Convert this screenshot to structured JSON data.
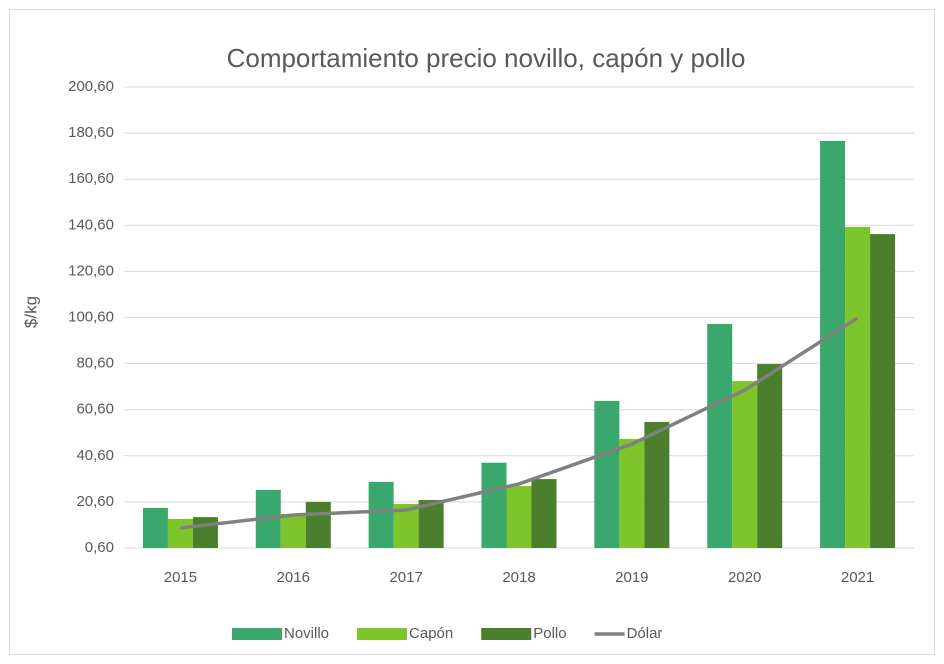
{
  "chart_data": {
    "type": "bar",
    "title": "Comportamiento precio novillo, capón y pollo",
    "y_label": "$/kg",
    "categories": [
      "2015",
      "2016",
      "2017",
      "2018",
      "2019",
      "2020",
      "2021"
    ],
    "series": [
      {
        "name": "Novillo",
        "color": "#3aa76d",
        "values": [
          18.0,
          25.8,
          29.3,
          37.6,
          64.4,
          97.8,
          177.2
        ]
      },
      {
        "name": "Capón",
        "color": "#7dc52a",
        "values": [
          13.2,
          15.4,
          19.7,
          27.5,
          47.9,
          73.0,
          139.9
        ]
      },
      {
        "name": "Pollo",
        "color": "#4b7f2e",
        "values": [
          14.0,
          20.6,
          21.4,
          30.5,
          55.3,
          80.4,
          136.8
        ]
      },
      {
        "name": "Dólar",
        "color": "#808080",
        "type": "line",
        "values": [
          9.3,
          14.9,
          17.1,
          28.4,
          45.7,
          69.1,
          100.4
        ]
      }
    ],
    "ylim": [
      0.6,
      200.6
    ],
    "yticks": [
      {
        "value": 0.6,
        "label": "0,60"
      },
      {
        "value": 20.6,
        "label": "20,60"
      },
      {
        "value": 40.6,
        "label": "40,60"
      },
      {
        "value": 60.6,
        "label": "60,60"
      },
      {
        "value": 80.6,
        "label": "80,60"
      },
      {
        "value": 100.6,
        "label": "100,60"
      },
      {
        "value": 120.6,
        "label": "120,60"
      },
      {
        "value": 140.6,
        "label": "140,60"
      },
      {
        "value": 160.6,
        "label": "160,60"
      },
      {
        "value": 180.6,
        "label": "180,60"
      },
      {
        "value": 200.6,
        "label": "200,60"
      }
    ],
    "grid": true,
    "legend": "bottom"
  }
}
